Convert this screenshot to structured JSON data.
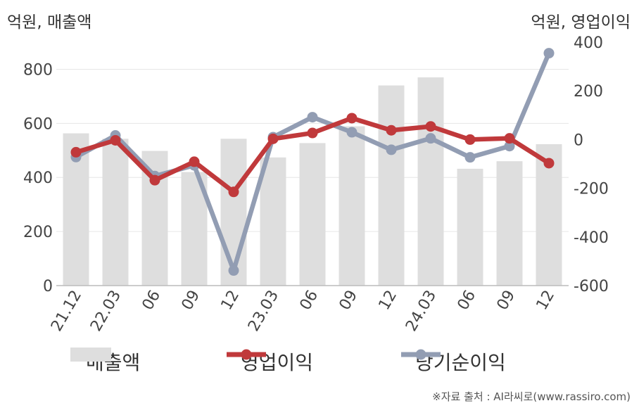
{
  "left_axis_unit": "억원, 매출액",
  "right_axis_unit": "억원, 영업이익",
  "source": "※자료 출처 : AI라씨로(www.rassiro.com)",
  "chart_data": {
    "type": "bar",
    "categories": [
      "21.12",
      "22.03",
      "06",
      "09",
      "12",
      "23.03",
      "06",
      "09",
      "12",
      "24.03",
      "06",
      "09",
      "12"
    ],
    "left_axis": {
      "ylim": [
        0,
        900
      ],
      "ticks": [
        0,
        200,
        400,
        600,
        800
      ]
    },
    "right_axis": {
      "ylim": [
        -600,
        400
      ],
      "ticks": [
        400,
        200,
        0,
        -200,
        -400,
        -600
      ]
    },
    "grid": true,
    "legend_position": "bottom",
    "series": [
      {
        "name": "매출액",
        "type": "bar",
        "axis": "left",
        "color": "#dedede",
        "values": [
          563,
          543,
          498,
          420,
          543,
          474,
          527,
          589,
          740,
          770,
          432,
          460,
          523
        ]
      },
      {
        "name": "영업이익",
        "type": "line",
        "axis": "right",
        "color": "#c0393b",
        "values": [
          -52,
          -3,
          -167,
          -91,
          -215,
          3,
          27,
          88,
          38,
          54,
          0,
          5,
          -97
        ]
      },
      {
        "name": "당기순이익",
        "type": "line",
        "axis": "right",
        "color": "#929db3",
        "values": [
          -72,
          17,
          -150,
          -106,
          -538,
          10,
          92,
          30,
          -42,
          5,
          -73,
          -27,
          355
        ]
      }
    ]
  }
}
